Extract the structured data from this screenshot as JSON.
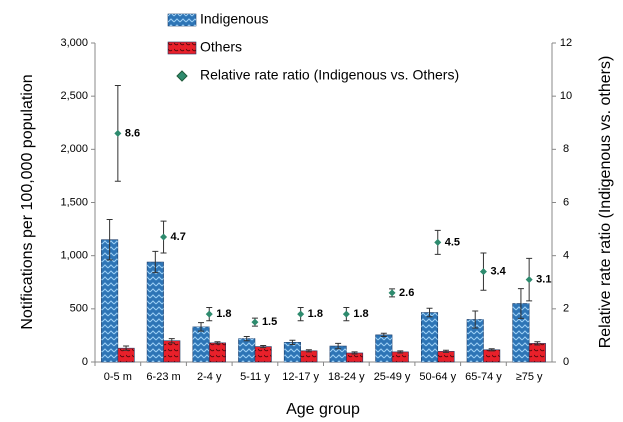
{
  "chart_data": {
    "type": "bar",
    "categories": [
      "0-5 m",
      "6-23 m",
      "2-4 y",
      "5-11 y",
      "12-17 y",
      "18-24 y",
      "25-49 y",
      "50-64 y",
      "65-74 y",
      "≥75 y"
    ],
    "series": [
      {
        "name": "Indigenous",
        "color": "#2e75b6",
        "values": [
          1150,
          940,
          330,
          220,
          185,
          150,
          255,
          465,
          400,
          550
        ],
        "errors": [
          190,
          100,
          40,
          20,
          20,
          25,
          15,
          40,
          80,
          140
        ]
      },
      {
        "name": "Others",
        "color": "#e8202a",
        "values": [
          130,
          200,
          180,
          145,
          105,
          85,
          95,
          100,
          115,
          175
        ],
        "errors": [
          20,
          20,
          10,
          10,
          10,
          10,
          10,
          10,
          10,
          15
        ]
      },
      {
        "name": "Relative rate ratio (Indigenous vs. Others)",
        "color": "#2e8b6e",
        "axis": "y2",
        "type": "scatter",
        "values": [
          8.6,
          4.7,
          1.8,
          1.5,
          1.8,
          1.8,
          2.6,
          4.5,
          3.4,
          3.1
        ],
        "errors": [
          1.8,
          0.6,
          0.25,
          0.15,
          0.25,
          0.25,
          0.15,
          0.45,
          0.7,
          0.8
        ]
      }
    ],
    "xlabel": "Age group",
    "ylabel": "Notifications per 100,000 population",
    "y2label": "Relative rate ratio (Indigenous vs. others)",
    "ylim": [
      0,
      3000
    ],
    "yticks": [
      0,
      {
        "value": 500,
        "label": "500"
      },
      {
        "value": 1000,
        "label": "1,000"
      },
      {
        "value": 1500,
        "label": "1,500"
      },
      {
        "value": 2000,
        "label": "2,000"
      },
      {
        "value": 2500,
        "label": "2,500"
      },
      {
        "value": 3000,
        "label": "3,000"
      }
    ],
    "y2lim": [
      0,
      12
    ],
    "y2ticks": [
      0,
      2,
      4,
      6,
      8,
      10,
      12
    ]
  }
}
